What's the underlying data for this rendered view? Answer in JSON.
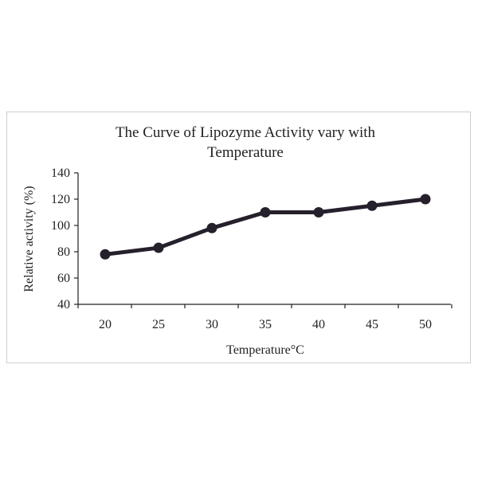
{
  "chart_data": {
    "type": "line",
    "title_lines": [
      "The Curve of Lipozyme Activity vary with",
      "Temperature"
    ],
    "xlabel": "Temperature°C",
    "ylabel": "Relative activity (%)",
    "x": [
      20,
      25,
      30,
      35,
      40,
      45,
      50
    ],
    "x_tick_labels": [
      "20",
      "25",
      "30",
      "35",
      "40",
      "45",
      "50"
    ],
    "y_tick_labels": [
      "40",
      "60",
      "80",
      "100",
      "120",
      "140"
    ],
    "y_ticks": [
      40,
      60,
      80,
      100,
      120,
      140
    ],
    "ylim": [
      40,
      140
    ],
    "series": [
      {
        "name": "Relative activity",
        "values": [
          78,
          83,
          98,
          110,
          110,
          115,
          120
        ]
      }
    ],
    "grid": false,
    "legend": "none",
    "colors": {
      "line": "#25202b",
      "axis": "#222222"
    }
  }
}
